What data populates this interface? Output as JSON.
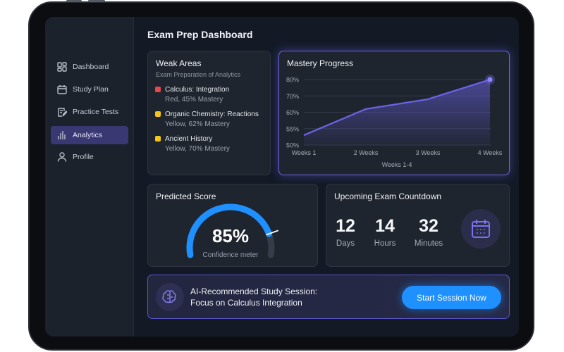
{
  "header": {
    "title": "Exam Prep Dashboard"
  },
  "sidebar": {
    "items": [
      {
        "label": "Dashboard",
        "icon": "grid-icon"
      },
      {
        "label": "Study Plan",
        "icon": "calendar-icon"
      },
      {
        "label": "Practice Tests",
        "icon": "edit-document-icon"
      },
      {
        "label": "Analytics",
        "icon": "bar-chart-icon",
        "active": true
      },
      {
        "label": "Profile",
        "icon": "user-icon"
      }
    ]
  },
  "weak_areas": {
    "title": "Weak Areas",
    "subtitle": "Exam Preparation of Analytics",
    "items": [
      {
        "name": "Calculus: Integration",
        "detail": "Red, 45% Mastery",
        "color": "#e5484d"
      },
      {
        "name": "Organic Chemistry: Reactions",
        "detail": "Yellow, 62% Mastery",
        "color": "#f5c518"
      },
      {
        "name": "Ancient History",
        "detail": "Yellow, 70% Mastery",
        "color": "#f5c518"
      }
    ]
  },
  "mastery": {
    "title": "Mastery Progress"
  },
  "chart_data": {
    "type": "area",
    "categories": [
      "Weeks 1",
      "2 Weeks",
      "3 Weeks",
      "4 Weeks"
    ],
    "values": [
      53,
      62,
      68,
      80
    ],
    "yticks": [
      "50%",
      "55%",
      "60%",
      "70%",
      "80%"
    ],
    "ytick_values": [
      50,
      55,
      60,
      70,
      80
    ],
    "xlabel": "Weeks 1-4",
    "ylabel": "",
    "grid": true,
    "color": "#6c63e8"
  },
  "predicted": {
    "title": "Predicted Score",
    "value": "85%",
    "percent": 85,
    "caption": "Confidence meter",
    "color": "#1e90ff"
  },
  "countdown": {
    "title": "Upcoming Exam Countdown",
    "units": [
      {
        "value": "12",
        "label": "Days"
      },
      {
        "value": "14",
        "label": "Hours"
      },
      {
        "value": "32",
        "label": "Minutes"
      }
    ]
  },
  "session": {
    "line1": "AI-Recommended Study Session:",
    "line2": "Focus on Calculus Integration",
    "button": "Start Session Now"
  }
}
